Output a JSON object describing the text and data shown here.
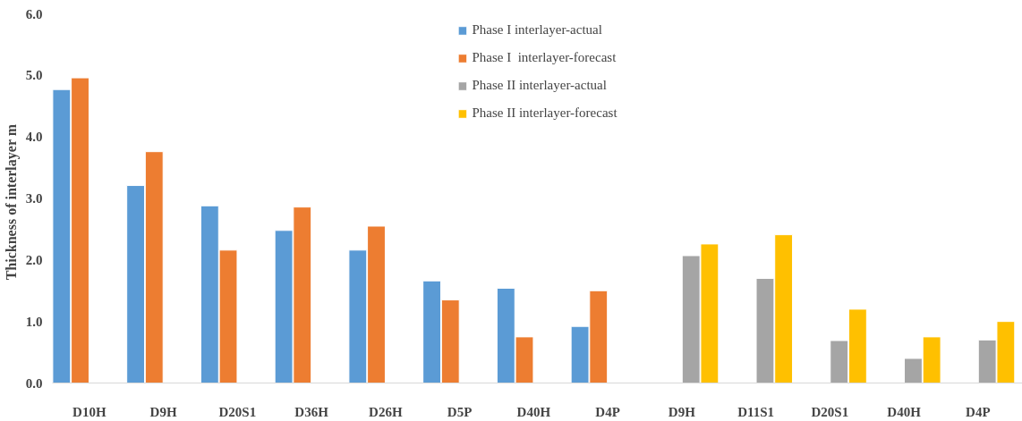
{
  "chart_data": {
    "type": "bar",
    "ylabel": "Thickness of interlayer   m",
    "categories": [
      "D10H",
      "D9H",
      "D20S1",
      "D36H",
      "D26H",
      "D5P",
      "D40H",
      "D4P",
      "D9H",
      "D11S1",
      "D20S1",
      "D40H",
      "D4P"
    ],
    "series": [
      {
        "name": "Phase I interlayer-actual",
        "color": "#5b9bd5",
        "values": [
          4.77,
          3.21,
          2.88,
          2.48,
          2.16,
          1.66,
          1.54,
          0.92,
          null,
          null,
          null,
          null,
          null
        ]
      },
      {
        "name": "Phase I  interlayer-forecast",
        "color": "#ed7d31",
        "values": [
          4.96,
          3.76,
          2.16,
          2.86,
          2.55,
          1.35,
          0.75,
          1.5,
          null,
          null,
          null,
          null,
          null
        ]
      },
      {
        "name": "Phase II interlayer-actual",
        "color": "#a5a5a5",
        "values": [
          null,
          null,
          null,
          null,
          null,
          null,
          null,
          null,
          2.07,
          1.7,
          0.69,
          0.4,
          0.7
        ]
      },
      {
        "name": "Phase II interlayer-forecast",
        "color": "#ffc000",
        "values": [
          null,
          null,
          null,
          null,
          null,
          null,
          null,
          null,
          2.26,
          2.41,
          1.2,
          0.75,
          1.0
        ]
      }
    ],
    "ylim": [
      0,
      6
    ],
    "yticks": [
      {
        "value": 0,
        "label": "0.0"
      },
      {
        "value": 1,
        "label": "1.0"
      },
      {
        "value": 2,
        "label": "2.0"
      },
      {
        "value": 3,
        "label": "3.0"
      },
      {
        "value": 4,
        "label": "4.0"
      },
      {
        "value": 5,
        "label": "5.0"
      },
      {
        "value": 6,
        "label": "6.0"
      }
    ],
    "grid": false,
    "legend": "top"
  }
}
